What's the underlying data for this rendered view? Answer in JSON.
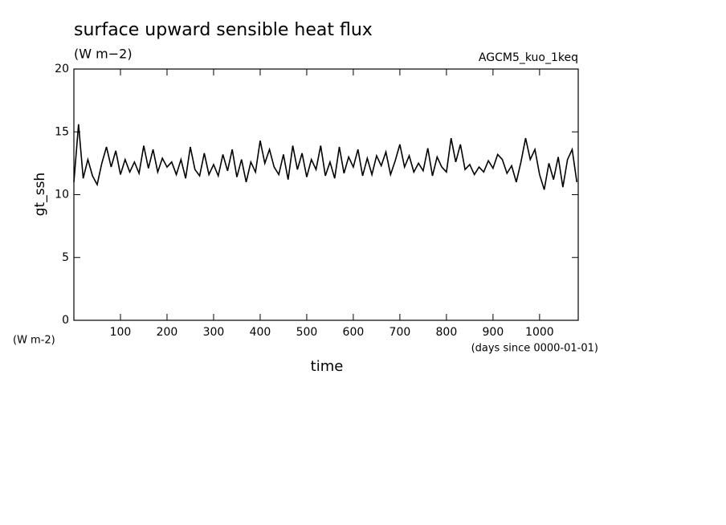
{
  "chart_data": {
    "type": "line",
    "title": "surface upward sensible heat flux",
    "subtitle": "(W m−2)",
    "annotation": "AGCM5_kuo_1keq",
    "y_label": "gt_ssh",
    "y_units": "(W m-2)",
    "x_label": "time",
    "x_units": "(days since 0000-01-01)",
    "xlim": [
      0,
      1083
    ],
    "ylim": [
      0,
      20
    ],
    "xticks": [
      100,
      200,
      300,
      400,
      500,
      600,
      700,
      800,
      900,
      1000
    ],
    "yticks": [
      0,
      5,
      10,
      15,
      20
    ],
    "x": [
      0,
      10,
      20,
      30,
      40,
      50,
      60,
      70,
      80,
      90,
      100,
      110,
      120,
      130,
      140,
      150,
      160,
      170,
      180,
      190,
      200,
      210,
      220,
      230,
      240,
      250,
      260,
      270,
      280,
      290,
      300,
      310,
      320,
      330,
      340,
      350,
      360,
      370,
      380,
      390,
      400,
      410,
      420,
      430,
      440,
      450,
      460,
      470,
      480,
      490,
      500,
      510,
      520,
      530,
      540,
      550,
      560,
      570,
      580,
      590,
      600,
      610,
      620,
      630,
      640,
      650,
      660,
      670,
      680,
      690,
      700,
      710,
      720,
      730,
      740,
      750,
      760,
      770,
      780,
      790,
      800,
      810,
      820,
      830,
      840,
      850,
      860,
      870,
      880,
      890,
      900,
      910,
      920,
      930,
      940,
      950,
      960,
      970,
      980,
      990,
      1000,
      1010,
      1020,
      1030,
      1040,
      1050,
      1060,
      1070,
      1080
    ],
    "series": [
      {
        "color": "#000000",
        "values": [
          11,
          15.6,
          11.3,
          12.8,
          11.5,
          10.8,
          12.5,
          13.8,
          12.2,
          13.5,
          11.6,
          12.8,
          11.8,
          12.6,
          11.7,
          13.9,
          12.1,
          13.6,
          11.8,
          12.9,
          12.2,
          12.6,
          11.6,
          12.8,
          11.3,
          13.8,
          12.0,
          11.5,
          13.3,
          11.6,
          12.4,
          11.5,
          13.2,
          11.9,
          13.6,
          11.4,
          12.8,
          11.0,
          12.6,
          11.8,
          14.3,
          12.5,
          13.6,
          12.2,
          11.6,
          13.2,
          11.2,
          13.9,
          12.0,
          13.3,
          11.4,
          12.8,
          12.0,
          13.9,
          11.5,
          12.6,
          11.3,
          13.8,
          11.7,
          13.0,
          12.2,
          13.6,
          11.5,
          12.9,
          11.6,
          13.1,
          12.3,
          13.4,
          11.6,
          12.7,
          14.0,
          12.2,
          13.1,
          11.8,
          12.5,
          11.9,
          13.7,
          11.5,
          13.0,
          12.2,
          11.8,
          14.5,
          12.6,
          14.0,
          12.0,
          12.4,
          11.6,
          12.2,
          11.8,
          12.7,
          12.1,
          13.2,
          12.8,
          11.7,
          12.3,
          11.0,
          12.6,
          14.5,
          12.8,
          13.6,
          11.6,
          10.4,
          12.5,
          11.2,
          13.0,
          10.6,
          12.8,
          13.6,
          11.0
        ]
      }
    ]
  }
}
